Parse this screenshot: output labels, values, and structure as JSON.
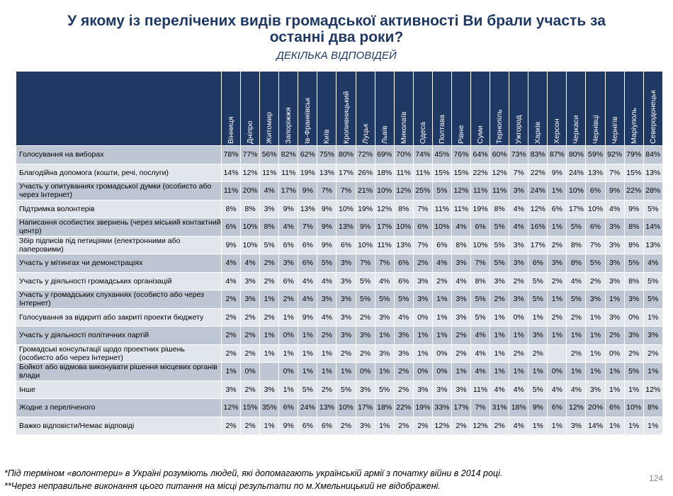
{
  "title_line1": "У якому із перелічених видів громадської активності Ви брали участь за",
  "title_line2": "останні два роки?",
  "subtitle": "ДЕКІЛЬКА ВІДПОВІДЕЙ",
  "footnote1": "*Під терміном «волонтери» в Україні розуміють людей, які допомагають українській армії з початку війни в 2014 році.",
  "footnote2": "**Через неправильне виконання цього питання на місці результати по м.Хмельницький не відображені.",
  "page_number": "124",
  "colors": {
    "header_bg": "#1f3864",
    "row_dark": "#bfc6d3",
    "row_light": "#e1e5ec",
    "title": "#1f3864"
  },
  "chart_data": {
    "type": "table",
    "columns": [
      "Вінниця",
      "Дніпро",
      "Житомир",
      "Запоріжжя",
      "Ів-Франківськ",
      "Київ",
      "Кропивницький",
      "Луцьк",
      "Львів",
      "Миколаїв",
      "Одеса",
      "Полтава",
      "Рівне",
      "Суми",
      "Тернопіль",
      "Ужгород",
      "Харків",
      "Херсон",
      "Черкаси",
      "Чернівці",
      "Чернігів",
      "Маріуполь",
      "Северодонецьк"
    ],
    "rows": [
      {
        "label": "Голосування на виборах",
        "values": [
          "78%",
          "77%",
          "56%",
          "82%",
          "62%",
          "75%",
          "80%",
          "72%",
          "69%",
          "70%",
          "74%",
          "45%",
          "76%",
          "64%",
          "60%",
          "73%",
          "83%",
          "87%",
          "80%",
          "59%",
          "92%",
          "79%",
          "84%"
        ]
      },
      {
        "label": "Благодійна допомога (кошти, речі, послуги)",
        "values": [
          "14%",
          "12%",
          "11%",
          "11%",
          "19%",
          "13%",
          "17%",
          "26%",
          "18%",
          "11%",
          "11%",
          "15%",
          "15%",
          "22%",
          "12%",
          "7%",
          "22%",
          "9%",
          "24%",
          "13%",
          "7%",
          "15%",
          "13%"
        ]
      },
      {
        "label": "Участь у опитуваннях громадської думки (особисто або через Інтернет)",
        "values": [
          "11%",
          "20%",
          "4%",
          "17%",
          "9%",
          "7%",
          "7%",
          "21%",
          "10%",
          "12%",
          "25%",
          "5%",
          "12%",
          "11%",
          "11%",
          "3%",
          "24%",
          "1%",
          "10%",
          "6%",
          "9%",
          "22%",
          "28%"
        ]
      },
      {
        "label": "Підтримка волонтерів",
        "values": [
          "8%",
          "8%",
          "3%",
          "9%",
          "13%",
          "9%",
          "10%",
          "19%",
          "12%",
          "8%",
          "7%",
          "11%",
          "11%",
          "19%",
          "8%",
          "4%",
          "12%",
          "6%",
          "17%",
          "10%",
          "4%",
          "9%",
          "5%"
        ]
      },
      {
        "label": "Написання особистих звернень (через міський контактний центр)",
        "values": [
          "6%",
          "10%",
          "8%",
          "4%",
          "7%",
          "9%",
          "13%",
          "9%",
          "17%",
          "10%",
          "6%",
          "10%",
          "4%",
          "6%",
          "5%",
          "4%",
          "16%",
          "1%",
          "5%",
          "6%",
          "3%",
          "8%",
          "14%"
        ]
      },
      {
        "label": "Збір підписів під петиціями (електронними або паперовими)",
        "values": [
          "9%",
          "10%",
          "5%",
          "6%",
          "6%",
          "9%",
          "6%",
          "10%",
          "11%",
          "13%",
          "7%",
          "6%",
          "8%",
          "10%",
          "5%",
          "3%",
          "17%",
          "2%",
          "8%",
          "7%",
          "3%",
          "8%",
          "13%"
        ]
      },
      {
        "label": "Участь у мітингах чи демонстраціях",
        "values": [
          "4%",
          "4%",
          "2%",
          "3%",
          "6%",
          "5%",
          "3%",
          "7%",
          "7%",
          "6%",
          "2%",
          "4%",
          "3%",
          "7%",
          "5%",
          "3%",
          "6%",
          "3%",
          "8%",
          "5%",
          "3%",
          "5%",
          "4%"
        ]
      },
      {
        "label": "Участь у діяльності громадських організацій",
        "values": [
          "4%",
          "3%",
          "2%",
          "6%",
          "4%",
          "4%",
          "3%",
          "5%",
          "4%",
          "6%",
          "3%",
          "2%",
          "4%",
          "8%",
          "3%",
          "2%",
          "5%",
          "2%",
          "4%",
          "2%",
          "3%",
          "8%",
          "5%"
        ]
      },
      {
        "label": "Участь у громадських слуханнях (особисто або через Інтернет)",
        "values": [
          "2%",
          "3%",
          "1%",
          "2%",
          "4%",
          "3%",
          "3%",
          "5%",
          "5%",
          "5%",
          "3%",
          "1%",
          "3%",
          "5%",
          "2%",
          "3%",
          "5%",
          "1%",
          "5%",
          "3%",
          "1%",
          "3%",
          "5%"
        ]
      },
      {
        "label": "Голосування за відкриті або закриті проекти бюджету",
        "values": [
          "2%",
          "2%",
          "2%",
          "1%",
          "9%",
          "4%",
          "3%",
          "2%",
          "3%",
          "4%",
          "0%",
          "1%",
          "3%",
          "5%",
          "1%",
          "0%",
          "1%",
          "2%",
          "2%",
          "1%",
          "3%",
          "0%",
          "1%"
        ]
      },
      {
        "label": "Участь у діяльності політичних партій",
        "values": [
          "2%",
          "2%",
          "1%",
          "0%",
          "1%",
          "2%",
          "3%",
          "3%",
          "1%",
          "3%",
          "1%",
          "1%",
          "2%",
          "4%",
          "1%",
          "1%",
          "3%",
          "1%",
          "1%",
          "1%",
          "2%",
          "3%",
          "3%"
        ]
      },
      {
        "label": "Громадські консультації щодо проектних рішень (особисто або через Інтернет)",
        "values": [
          "2%",
          "2%",
          "1%",
          "1%",
          "1%",
          "1%",
          "2%",
          "2%",
          "3%",
          "3%",
          "1%",
          "0%",
          "2%",
          "4%",
          "1%",
          "2%",
          "2%",
          "",
          "2%",
          "1%",
          "0%",
          "2%",
          "2%"
        ]
      },
      {
        "label": "Бойкот або відмова виконувати рішення місцевих органів влади",
        "values": [
          "1%",
          "0%",
          "",
          "0%",
          "1%",
          "1%",
          "1%",
          "0%",
          "1%",
          "2%",
          "0%",
          "0%",
          "1%",
          "4%",
          "1%",
          "1%",
          "1%",
          "0%",
          "1%",
          "1%",
          "1%",
          "5%",
          "1%"
        ]
      },
      {
        "label": "Інше",
        "values": [
          "3%",
          "2%",
          "3%",
          "1%",
          "5%",
          "2%",
          "5%",
          "3%",
          "5%",
          "2%",
          "3%",
          "3%",
          "3%",
          "11%",
          "4%",
          "4%",
          "5%",
          "4%",
          "4%",
          "3%",
          "1%",
          "1%",
          "12%"
        ]
      },
      {
        "label": "Жодне з переліченого",
        "values": [
          "12%",
          "15%",
          "35%",
          "6%",
          "24%",
          "13%",
          "10%",
          "17%",
          "18%",
          "22%",
          "19%",
          "33%",
          "17%",
          "7%",
          "31%",
          "18%",
          "9%",
          "6%",
          "12%",
          "20%",
          "6%",
          "10%",
          "8%"
        ]
      },
      {
        "label": "Важко відповісти/Немає відповіді",
        "values": [
          "2%",
          "2%",
          "1%",
          "9%",
          "6%",
          "6%",
          "2%",
          "3%",
          "1%",
          "2%",
          "2%",
          "12%",
          "2%",
          "12%",
          "2%",
          "4%",
          "1%",
          "1%",
          "3%",
          "14%",
          "1%",
          "1%",
          "1%"
        ]
      }
    ]
  }
}
